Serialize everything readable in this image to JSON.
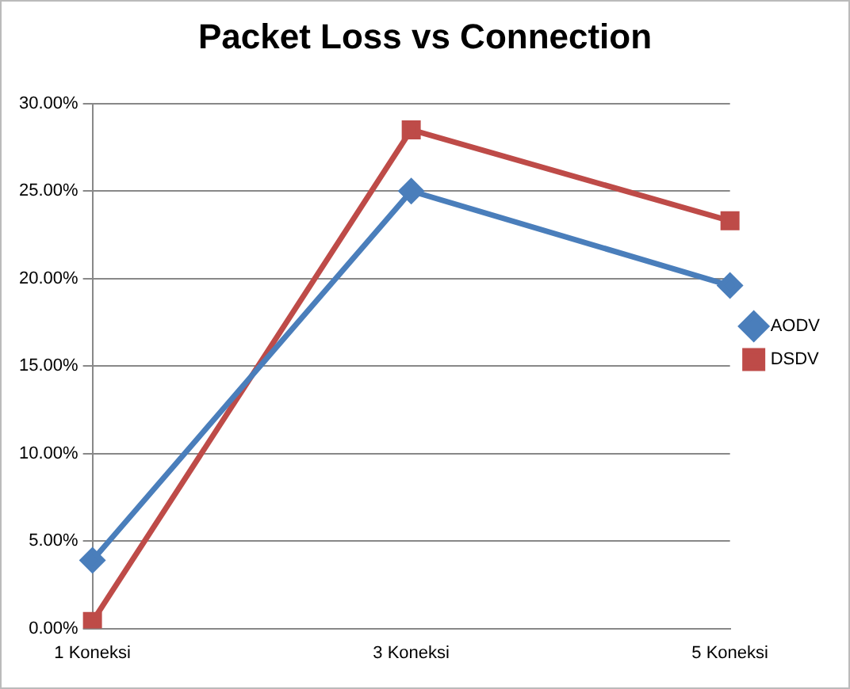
{
  "chart_data": {
    "type": "line",
    "title": "Packet Loss vs Connection",
    "categories": [
      "1 Koneksi",
      "3 Koneksi",
      "5 Koneksi"
    ],
    "series": [
      {
        "name": "AODV",
        "color": "#4a7ebb",
        "values": [
          3.9,
          25.0,
          19.6
        ],
        "marker": "diamond"
      },
      {
        "name": "DSDV",
        "color": "#be4b48",
        "values": [
          0.4,
          28.5,
          23.3
        ],
        "marker": "square"
      }
    ],
    "ylim": [
      0,
      30
    ],
    "yticks": [
      {
        "value": 0,
        "label": "0.00%"
      },
      {
        "value": 5,
        "label": "5.00%"
      },
      {
        "value": 10,
        "label": "10.00%"
      },
      {
        "value": 15,
        "label": "15.00%"
      },
      {
        "value": 20,
        "label": "20.00%"
      },
      {
        "value": 25,
        "label": "25.00%"
      },
      {
        "value": 30,
        "label": "30.00%"
      }
    ],
    "grid": "y",
    "legend": "right",
    "line_style": "solid"
  }
}
